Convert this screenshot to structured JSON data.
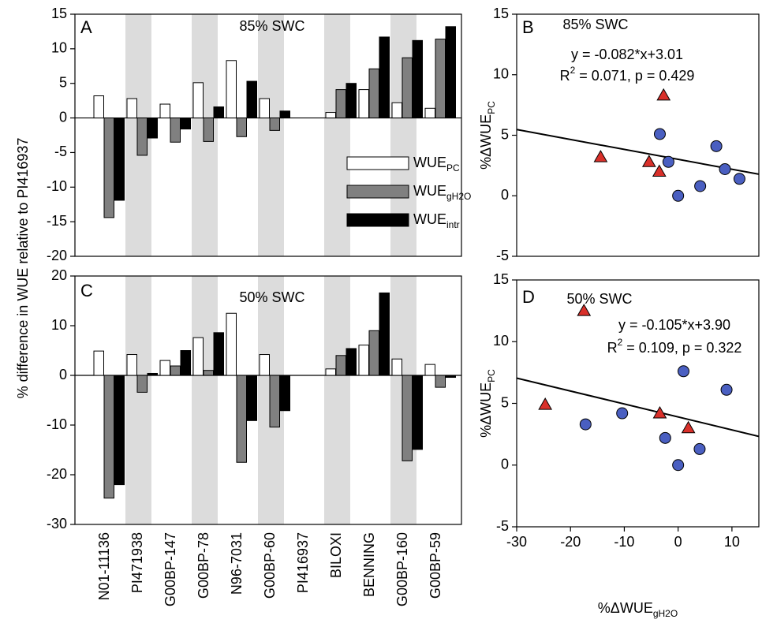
{
  "chart_data": [
    {
      "type": "bar",
      "title": "A",
      "subtitle": "85% SWC",
      "ylabel": "% difference in WUE relative to PI416937",
      "ylim": [
        -20,
        15
      ],
      "yticks": [
        -20,
        -15,
        -10,
        -5,
        0,
        5,
        10,
        15
      ],
      "series": [
        {
          "name": "WUE",
          "name_sub": "PC",
          "color": "#ffffff",
          "values": [
            3.2,
            2.8,
            2.0,
            5.1,
            8.3,
            2.8,
            0,
            0.8,
            4.1,
            2.2,
            1.4
          ]
        },
        {
          "name": "WUE",
          "name_sub": "gH2O",
          "color": "#808080",
          "values": [
            -14.4,
            -5.4,
            -3.5,
            -3.4,
            -2.7,
            -1.8,
            0,
            4.1,
            7.1,
            8.7,
            11.4
          ]
        },
        {
          "name": "WUE",
          "name_sub": "intr",
          "color": "#000000",
          "values": [
            -11.9,
            -2.9,
            -1.6,
            1.6,
            5.3,
            1.0,
            0,
            5.0,
            11.7,
            11.2,
            13.2
          ]
        }
      ]
    },
    {
      "type": "scatter",
      "title": "B",
      "subtitle": "85% SWC",
      "equation": "y = -0.082*x+3.01",
      "stats_text": [
        "R",
        "2",
        " = 0.071, p = 0.429"
      ],
      "trendline": {
        "slope": -0.082,
        "intercept": 3.01
      },
      "ylabel": "%ΔWUE",
      "ylabel_sub": "PC",
      "xlim": [
        -30,
        15
      ],
      "ylim": [
        -5,
        15
      ],
      "yticks": [
        -5,
        0,
        5,
        10,
        15
      ],
      "series": [
        {
          "marker": "triangle",
          "color": "#d9302a",
          "x": [
            -14.4,
            -5.4,
            -3.5,
            -2.7
          ],
          "values": [
            3.2,
            2.8,
            2.0,
            8.3
          ]
        },
        {
          "marker": "circle",
          "color": "#4a5fc1",
          "x": [
            -3.4,
            -1.8,
            0,
            4.1,
            7.1,
            8.7,
            11.4
          ],
          "values": [
            5.1,
            2.8,
            0,
            0.8,
            4.1,
            2.2,
            1.4
          ]
        }
      ]
    },
    {
      "type": "bar",
      "title": "C",
      "subtitle": "50% SWC",
      "categories": [
        "N01-11136",
        "PI471938",
        "G00BP-147",
        "G00BP-78",
        "N96-7031",
        "G00BP-60",
        "PI416937",
        "BILOXI",
        "BENNING",
        "G00BP-160",
        "G00BP-59"
      ],
      "ylim": [
        -30,
        20
      ],
      "yticks": [
        -30,
        -20,
        -10,
        0,
        10,
        20
      ],
      "series": [
        {
          "color": "#ffffff",
          "values": [
            4.9,
            4.2,
            3.0,
            7.6,
            12.5,
            4.2,
            0,
            1.3,
            6.1,
            3.3,
            2.2
          ]
        },
        {
          "color": "#808080",
          "values": [
            -24.7,
            -3.4,
            1.9,
            1.0,
            -17.5,
            -10.4,
            0,
            4.0,
            9.0,
            -17.2,
            -2.4
          ]
        },
        {
          "color": "#000000",
          "values": [
            -22,
            0.4,
            5.0,
            8.6,
            -9.1,
            -7.1,
            0,
            5.4,
            16.6,
            -14.9,
            -0.4
          ]
        }
      ]
    },
    {
      "type": "scatter",
      "title": "D",
      "subtitle": "50% SWC",
      "equation": "y = -0.105*x+3.90",
      "stats_text": [
        "R",
        "2",
        " = 0.109, p = 0.322"
      ],
      "trendline": {
        "slope": -0.105,
        "intercept": 3.9
      },
      "ylabel": "%ΔWUE",
      "ylabel_sub": "PC",
      "xlabel": "%ΔWUE",
      "xlabel_sub": "gH2O",
      "xlim": [
        -30,
        15
      ],
      "xticks": [
        -30,
        -20,
        -10,
        0,
        10
      ],
      "ylim": [
        -5,
        15
      ],
      "yticks": [
        -5,
        0,
        5,
        10,
        15
      ],
      "series": [
        {
          "marker": "triangle",
          "color": "#d9302a",
          "x": [
            -24.7,
            -17.5,
            -3.4,
            1.9
          ],
          "values": [
            4.9,
            12.5,
            4.2,
            3.0
          ]
        },
        {
          "marker": "circle",
          "color": "#4a5fc1",
          "x": [
            -17.2,
            -10.4,
            -2.4,
            0,
            1.0,
            4.0,
            9.0
          ],
          "values": [
            3.3,
            4.2,
            2.2,
            0,
            7.6,
            1.3,
            6.1
          ]
        }
      ]
    }
  ]
}
